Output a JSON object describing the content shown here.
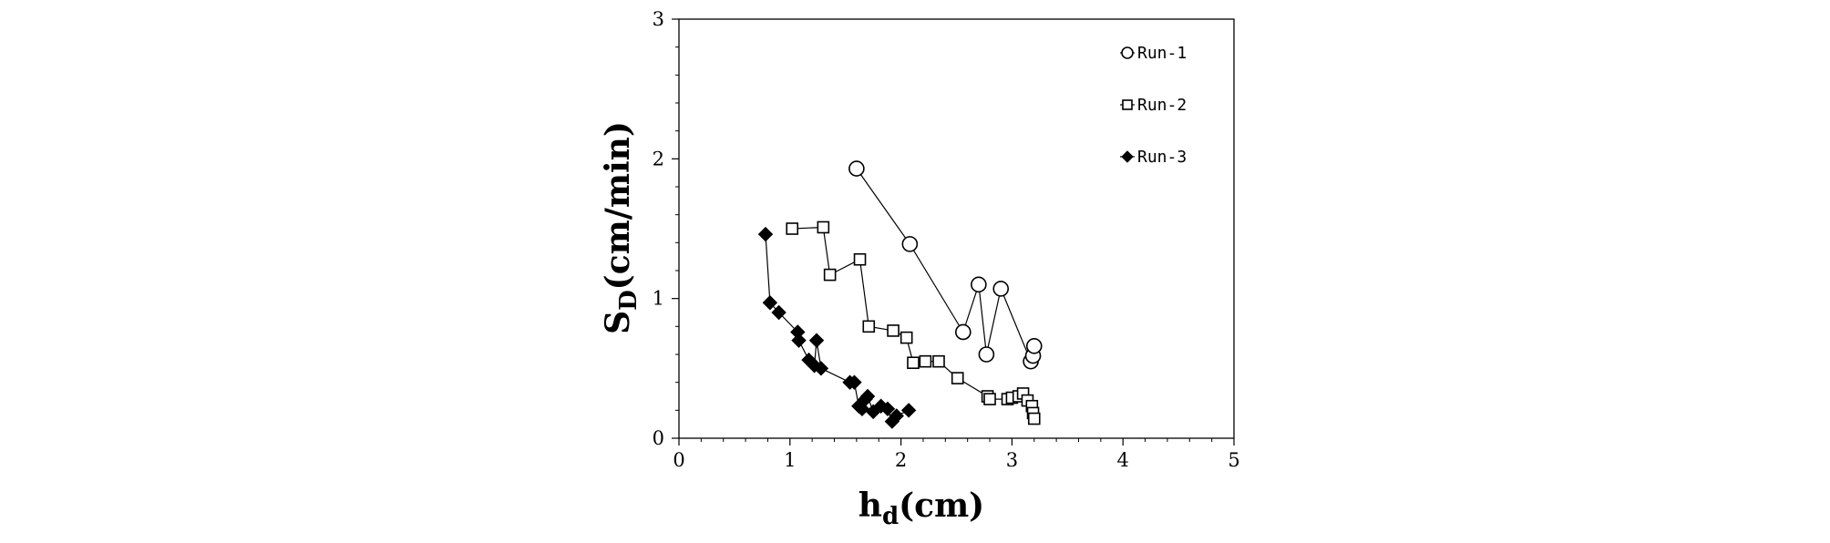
{
  "chart_data": {
    "type": "scatter",
    "xlabel": "h",
    "xlabel_sub": "d",
    "xlabel_unit": "(cm)",
    "ylabel": "S",
    "ylabel_sub": "D",
    "ylabel_unit": "(cm/min)",
    "xlim": [
      0,
      5
    ],
    "ylim": [
      0,
      3
    ],
    "xticks": [
      "0",
      "1",
      "2",
      "3",
      "4",
      "5"
    ],
    "yticks": [
      "0",
      "1",
      "2",
      "3"
    ],
    "grid": false,
    "legend_position": "top-right",
    "series": [
      {
        "name": "Run-1",
        "marker": "circle-open",
        "points": [
          [
            1.6,
            1.93
          ],
          [
            2.08,
            1.39
          ],
          [
            2.56,
            0.76
          ],
          [
            2.7,
            1.1
          ],
          [
            2.77,
            0.6
          ],
          [
            2.9,
            1.07
          ],
          [
            3.17,
            0.55
          ],
          [
            3.19,
            0.59
          ],
          [
            3.2,
            0.66
          ]
        ]
      },
      {
        "name": "Run-2",
        "marker": "square-open",
        "points": [
          [
            1.02,
            1.5
          ],
          [
            1.3,
            1.51
          ],
          [
            1.36,
            1.17
          ],
          [
            1.63,
            1.28
          ],
          [
            1.71,
            0.8
          ],
          [
            1.93,
            0.77
          ],
          [
            2.05,
            0.72
          ],
          [
            2.11,
            0.54
          ],
          [
            2.22,
            0.55
          ],
          [
            2.34,
            0.55
          ],
          [
            2.51,
            0.43
          ],
          [
            2.78,
            0.3
          ],
          [
            2.8,
            0.28
          ],
          [
            2.96,
            0.28
          ],
          [
            3.0,
            0.29
          ],
          [
            3.06,
            0.3
          ],
          [
            3.1,
            0.32
          ],
          [
            3.14,
            0.27
          ],
          [
            3.18,
            0.23
          ],
          [
            3.19,
            0.18
          ],
          [
            3.2,
            0.14
          ]
        ]
      },
      {
        "name": "Run-3",
        "marker": "diamond-filled",
        "points": [
          [
            0.78,
            1.46
          ],
          [
            0.82,
            0.97
          ],
          [
            0.9,
            0.9
          ],
          [
            1.07,
            0.76
          ],
          [
            1.08,
            0.7
          ],
          [
            1.17,
            0.56
          ],
          [
            1.22,
            0.52
          ],
          [
            1.24,
            0.7
          ],
          [
            1.28,
            0.5
          ],
          [
            1.54,
            0.4
          ],
          [
            1.58,
            0.4
          ],
          [
            1.62,
            0.23
          ],
          [
            1.65,
            0.21
          ],
          [
            1.68,
            0.28
          ],
          [
            1.7,
            0.3
          ],
          [
            1.75,
            0.19
          ],
          [
            1.82,
            0.23
          ],
          [
            1.88,
            0.21
          ],
          [
            1.92,
            0.12
          ],
          [
            1.96,
            0.16
          ],
          [
            2.07,
            0.2
          ]
        ]
      }
    ]
  }
}
